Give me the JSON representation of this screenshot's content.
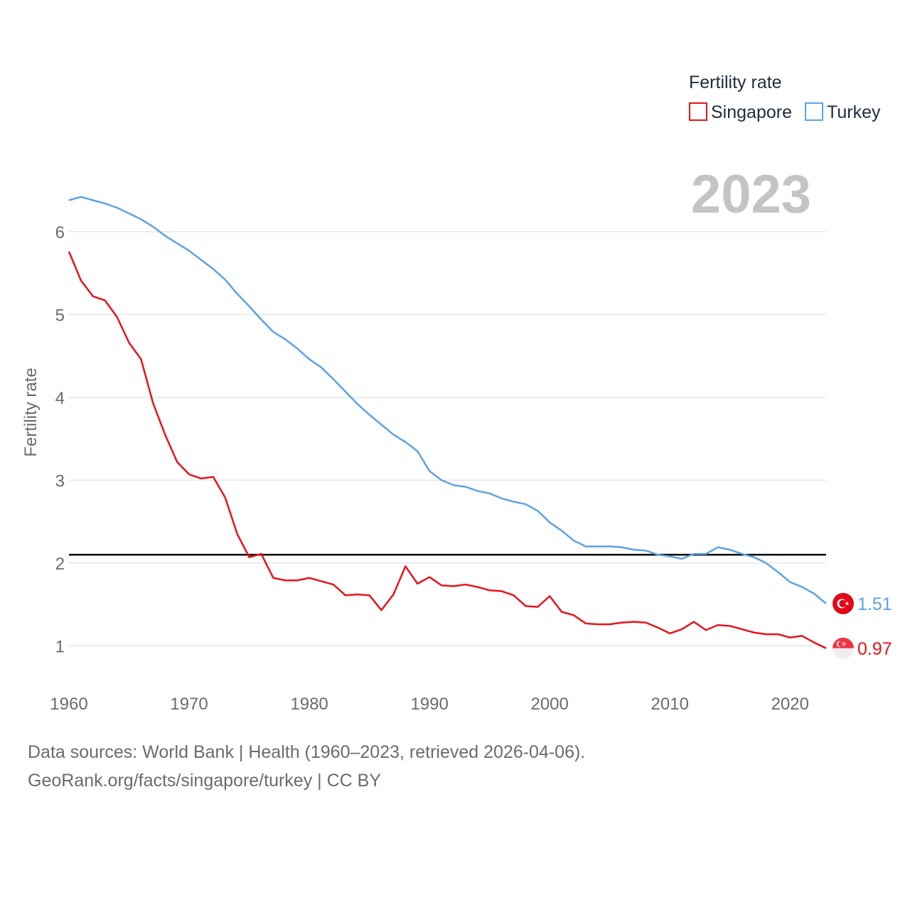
{
  "chart_data": {
    "type": "line",
    "title": "",
    "xlabel": "",
    "ylabel": "Fertility rate",
    "xlim": [
      1960,
      2023
    ],
    "ylim": [
      0.6,
      6.6
    ],
    "x_ticks": [
      1960,
      1970,
      1980,
      1990,
      2000,
      2010,
      2020
    ],
    "y_ticks": [
      1,
      2,
      3,
      4,
      5,
      6
    ],
    "grid": true,
    "legend": {
      "title": "Fertility rate",
      "position": "top-right"
    },
    "year_label": "2023",
    "reference_line": {
      "y": 2.1,
      "color": "#000000"
    },
    "x": [
      1960,
      1961,
      1962,
      1963,
      1964,
      1965,
      1966,
      1967,
      1968,
      1969,
      1970,
      1971,
      1972,
      1973,
      1974,
      1975,
      1976,
      1977,
      1978,
      1979,
      1980,
      1981,
      1982,
      1983,
      1984,
      1985,
      1986,
      1987,
      1988,
      1989,
      1990,
      1991,
      1992,
      1993,
      1994,
      1995,
      1996,
      1997,
      1998,
      1999,
      2000,
      2001,
      2002,
      2003,
      2004,
      2005,
      2006,
      2007,
      2008,
      2009,
      2010,
      2011,
      2012,
      2013,
      2014,
      2015,
      2016,
      2017,
      2018,
      2019,
      2020,
      2021,
      2022,
      2023
    ],
    "series": [
      {
        "name": "Singapore",
        "color": "#e8121b",
        "flag": "singapore-flag",
        "end_label": "0.97",
        "values": [
          5.76,
          5.41,
          5.22,
          5.17,
          4.97,
          4.66,
          4.46,
          3.93,
          3.55,
          3.22,
          3.07,
          3.02,
          3.04,
          2.79,
          2.35,
          2.07,
          2.11,
          1.82,
          1.79,
          1.79,
          1.82,
          1.78,
          1.74,
          1.61,
          1.62,
          1.61,
          1.43,
          1.62,
          1.96,
          1.75,
          1.83,
          1.73,
          1.72,
          1.74,
          1.71,
          1.67,
          1.66,
          1.61,
          1.48,
          1.47,
          1.6,
          1.41,
          1.37,
          1.27,
          1.26,
          1.26,
          1.28,
          1.29,
          1.28,
          1.22,
          1.15,
          1.2,
          1.29,
          1.19,
          1.25,
          1.24,
          1.2,
          1.16,
          1.14,
          1.14,
          1.1,
          1.12,
          1.04,
          0.97
        ]
      },
      {
        "name": "Turkey",
        "color": "#5ba3e6",
        "flag": "turkey-flag",
        "end_label": "1.51",
        "values": [
          6.38,
          6.42,
          6.38,
          6.34,
          6.29,
          6.22,
          6.15,
          6.06,
          5.95,
          5.86,
          5.77,
          5.66,
          5.55,
          5.42,
          5.25,
          5.1,
          4.94,
          4.79,
          4.7,
          4.59,
          4.46,
          4.36,
          4.22,
          4.07,
          3.92,
          3.79,
          3.67,
          3.55,
          3.46,
          3.35,
          3.11,
          3.0,
          2.94,
          2.92,
          2.87,
          2.84,
          2.78,
          2.74,
          2.71,
          2.63,
          2.49,
          2.39,
          2.27,
          2.2,
          2.2,
          2.2,
          2.19,
          2.16,
          2.15,
          2.1,
          2.08,
          2.05,
          2.11,
          2.11,
          2.19,
          2.16,
          2.11,
          2.07,
          2.0,
          1.89,
          1.77,
          1.71,
          1.63,
          1.51
        ]
      }
    ]
  },
  "footer": {
    "source": "Data sources: World Bank | Health (1960–2023, retrieved 2026-04-06).",
    "credit": "GeoRank.org/facts/singapore/turkey | CC BY"
  }
}
